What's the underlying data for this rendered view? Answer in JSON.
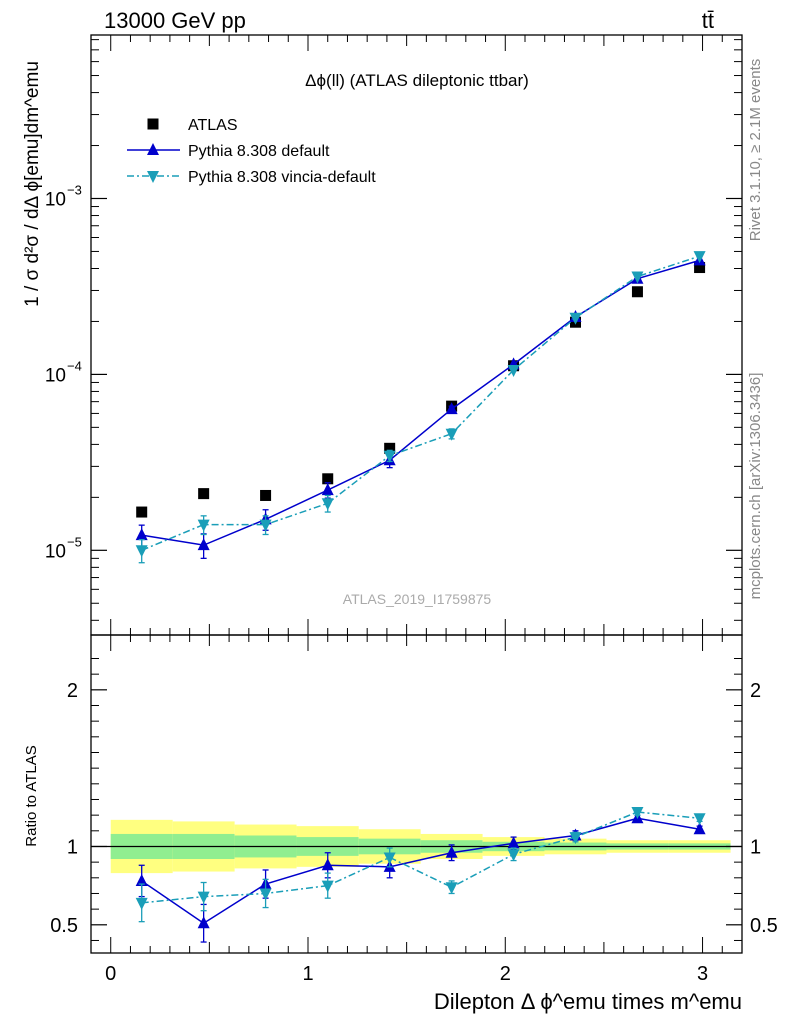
{
  "header": {
    "process": "13000 GeV pp",
    "final_state": "tt̄"
  },
  "side_labels": {
    "rivet": "Rivet 3.1.10, ≥ 2.1M events",
    "mcplots": "mcplots.cern.ch [arXiv:1306.3436]"
  },
  "chart_data": [
    {
      "type": "scatter",
      "panel": "main",
      "title": "Δϕ(ll) (ATLAS dileptonic ttbar)",
      "watermark": "ATLAS_2019_I1759875",
      "ylabel": "1 / σ  d²σ / dΔ ϕ[emu]dm^emu",
      "yscale": "log",
      "ylim": [
        3.3e-06,
        0.0085
      ],
      "xlim": [
        -0.1,
        3.2
      ],
      "x": [
        0.157,
        0.471,
        0.785,
        1.1,
        1.414,
        1.728,
        2.042,
        2.356,
        2.67,
        2.985
      ],
      "legend_position": "top-left",
      "y_ticks": [
        {
          "v": 1e-05,
          "base": "10",
          "exp": "−5"
        },
        {
          "v": 0.0001,
          "base": "10",
          "exp": "−4"
        },
        {
          "v": 0.001,
          "base": "10",
          "exp": "−3"
        }
      ],
      "series": [
        {
          "name": "ATLAS",
          "style": "data",
          "color": "#000000",
          "values": [
            1.65e-05,
            2.1e-05,
            2.05e-05,
            2.55e-05,
            3.8e-05,
            6.6e-05,
            0.000112,
            0.000198,
            0.000295,
            0.000405
          ],
          "err_lo": [
            0,
            0,
            0,
            0,
            0,
            0,
            0,
            0,
            0,
            0
          ],
          "err_hi": [
            0,
            0,
            0,
            0,
            0,
            0,
            0,
            0,
            0,
            0
          ]
        },
        {
          "name": "Pythia 8.308 default",
          "style": "solid",
          "marker": "triangle-up",
          "color": "#0000cc",
          "values": [
            1.22e-05,
            1.07e-05,
            1.5e-05,
            2.2e-05,
            3.25e-05,
            6.35e-05,
            0.000114,
            0.000212,
            0.00035,
            0.000445
          ],
          "err_lo": [
            1.7e-06,
            1.7e-06,
            2e-06,
            2.2e-06,
            3e-06,
            2.5e-06,
            0,
            0,
            0,
            0
          ],
          "err_hi": [
            1.7e-06,
            1.7e-06,
            2e-06,
            2.2e-06,
            3e-06,
            2.5e-06,
            0,
            0,
            0,
            0
          ]
        },
        {
          "name": "Pythia 8.308 vincia-default",
          "style": "dashdot",
          "marker": "triangle-down",
          "color": "#1a9eb8",
          "values": [
            1e-05,
            1.4e-05,
            1.4e-05,
            1.85e-05,
            3.45e-05,
            4.6e-05,
            0.000106,
            0.00021,
            0.00036,
            0.00047
          ],
          "err_lo": [
            1.5e-06,
            1.7e-06,
            1.7e-06,
            2e-06,
            2.5e-06,
            3e-06,
            0,
            0,
            0,
            0
          ],
          "err_hi": [
            1.5e-06,
            1.7e-06,
            1.7e-06,
            2e-06,
            2.5e-06,
            3e-06,
            0,
            0,
            0,
            0
          ]
        }
      ]
    },
    {
      "type": "line",
      "panel": "ratio",
      "ylabel": "Ratio to ATLAS",
      "xlabel": "Dilepton Δ ϕ^emu times m^emu",
      "ylim": [
        0.32,
        2.35
      ],
      "xlim": [
        -0.1,
        3.2
      ],
      "y_ticks": [
        "0.5",
        "1",
        "2"
      ],
      "y_tick_values": [
        0.5,
        1,
        2
      ],
      "x_ticks": [
        "0",
        "1",
        "2",
        "3"
      ],
      "x_tick_values": [
        0,
        1,
        2,
        3
      ],
      "x": [
        0.157,
        0.471,
        0.785,
        1.1,
        1.414,
        1.728,
        2.042,
        2.356,
        2.67,
        2.985
      ],
      "bin_edges": [
        0,
        0.314,
        0.628,
        0.942,
        1.257,
        1.571,
        1.885,
        2.199,
        2.513,
        2.827,
        3.142
      ],
      "band_inner": {
        "color": "#90ee90",
        "lo": [
          0.92,
          0.92,
          0.93,
          0.94,
          0.95,
          0.96,
          0.97,
          0.975,
          0.98,
          0.98
        ],
        "hi": [
          1.08,
          1.08,
          1.07,
          1.06,
          1.05,
          1.04,
          1.03,
          1.025,
          1.02,
          1.02
        ]
      },
      "band_outer": {
        "color": "#ffff80",
        "lo": [
          0.83,
          0.84,
          0.86,
          0.87,
          0.89,
          0.92,
          0.94,
          0.95,
          0.96,
          0.96
        ],
        "hi": [
          1.17,
          1.16,
          1.14,
          1.13,
          1.11,
          1.08,
          1.06,
          1.05,
          1.04,
          1.04
        ]
      },
      "series": [
        {
          "name": "Pythia 8.308 default",
          "style": "solid",
          "marker": "triangle-up",
          "color": "#0000cc",
          "values": [
            0.78,
            0.51,
            0.76,
            0.88,
            0.87,
            0.96,
            1.02,
            1.07,
            1.18,
            1.11
          ],
          "err_lo": [
            0.1,
            0.12,
            0.09,
            0.08,
            0.07,
            0.05,
            0.04,
            0.03,
            0.02,
            0.02
          ],
          "err_hi": [
            0.1,
            0.12,
            0.09,
            0.08,
            0.07,
            0.05,
            0.04,
            0.03,
            0.02,
            0.02
          ]
        },
        {
          "name": "Pythia 8.308 vincia-default",
          "style": "dashdot",
          "marker": "triangle-down",
          "color": "#1a9eb8",
          "values": [
            0.64,
            0.68,
            0.7,
            0.75,
            0.93,
            0.74,
            0.95,
            1.06,
            1.22,
            1.18
          ],
          "err_lo": [
            0.12,
            0.09,
            0.09,
            0.08,
            0.06,
            0.04,
            0.04,
            0.03,
            0.02,
            0.02
          ],
          "err_hi": [
            0.12,
            0.09,
            0.09,
            0.08,
            0.06,
            0.04,
            0.04,
            0.03,
            0.02,
            0.02
          ]
        }
      ]
    }
  ]
}
